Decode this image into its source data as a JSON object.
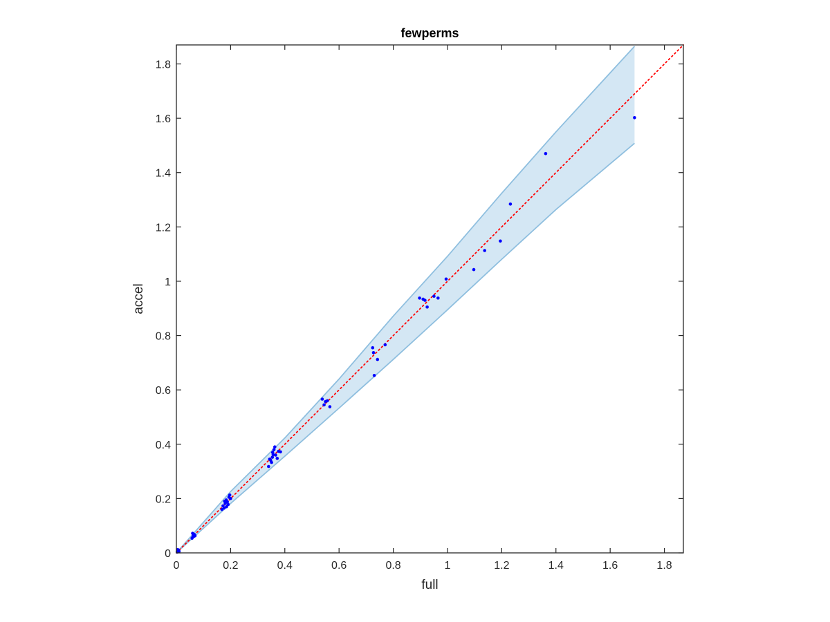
{
  "chart_data": {
    "type": "scatter",
    "title": "fewperms",
    "xlabel": "full",
    "ylabel": "accel",
    "xlim": [
      0,
      1.87
    ],
    "ylim": [
      0,
      1.87
    ],
    "xticks": [
      "0",
      "0.2",
      "0.4",
      "0.6",
      "0.8",
      "1",
      "1.2",
      "1.4",
      "1.6",
      "1.8"
    ],
    "yticks": [
      "0",
      "0.2",
      "0.4",
      "0.6",
      "0.8",
      "1",
      "1.2",
      "1.4",
      "1.6",
      "1.8"
    ],
    "grid": false,
    "reference_line": {
      "style": "dotted",
      "color": "#ff0000",
      "from": [
        0,
        0
      ],
      "to": [
        1.87,
        1.87
      ]
    },
    "band": {
      "color": "#d4e7f4",
      "edge_color": "#8fbfdf",
      "upper": [
        [
          0,
          0
        ],
        [
          0.2,
          0.226
        ],
        [
          0.4,
          0.423
        ],
        [
          0.6,
          0.64
        ],
        [
          0.8,
          0.872
        ],
        [
          1.0,
          1.092
        ],
        [
          1.2,
          1.324
        ],
        [
          1.4,
          1.55
        ],
        [
          1.69,
          1.865
        ]
      ],
      "lower": [
        [
          0,
          0
        ],
        [
          0.2,
          0.182
        ],
        [
          0.4,
          0.356
        ],
        [
          0.6,
          0.533
        ],
        [
          0.8,
          0.712
        ],
        [
          1.0,
          0.895
        ],
        [
          1.2,
          1.081
        ],
        [
          1.4,
          1.264
        ],
        [
          1.69,
          1.508
        ]
      ]
    },
    "series": [
      {
        "color": "#0000ff",
        "points": [
          [
            0.003,
            0.003
          ],
          [
            0.006,
            0.006
          ],
          [
            0.008,
            0.01
          ],
          [
            0.01,
            0.006
          ],
          [
            0.005,
            0.012
          ],
          [
            0.058,
            0.054
          ],
          [
            0.061,
            0.059
          ],
          [
            0.063,
            0.066
          ],
          [
            0.066,
            0.068
          ],
          [
            0.06,
            0.072
          ],
          [
            0.065,
            0.061
          ],
          [
            0.069,
            0.063
          ],
          [
            0.168,
            0.16
          ],
          [
            0.172,
            0.173
          ],
          [
            0.176,
            0.165
          ],
          [
            0.18,
            0.182
          ],
          [
            0.184,
            0.195
          ],
          [
            0.188,
            0.188
          ],
          [
            0.191,
            0.178
          ],
          [
            0.194,
            0.205
          ],
          [
            0.197,
            0.213
          ],
          [
            0.2,
            0.2
          ],
          [
            0.178,
            0.19
          ],
          [
            0.185,
            0.17
          ],
          [
            0.34,
            0.318
          ],
          [
            0.344,
            0.345
          ],
          [
            0.348,
            0.341
          ],
          [
            0.351,
            0.333
          ],
          [
            0.354,
            0.352
          ],
          [
            0.357,
            0.362
          ],
          [
            0.36,
            0.38
          ],
          [
            0.363,
            0.39
          ],
          [
            0.366,
            0.36
          ],
          [
            0.372,
            0.348
          ],
          [
            0.377,
            0.374
          ],
          [
            0.384,
            0.372
          ],
          [
            0.355,
            0.37
          ],
          [
            0.538,
            0.566
          ],
          [
            0.545,
            0.545
          ],
          [
            0.55,
            0.557
          ],
          [
            0.557,
            0.56
          ],
          [
            0.566,
            0.538
          ],
          [
            0.724,
            0.755
          ],
          [
            0.727,
            0.737
          ],
          [
            0.73,
            0.653
          ],
          [
            0.742,
            0.712
          ],
          [
            0.77,
            0.766
          ],
          [
            0.897,
            0.938
          ],
          [
            0.91,
            0.934
          ],
          [
            0.917,
            0.93
          ],
          [
            0.925,
            0.905
          ],
          [
            0.95,
            0.945
          ],
          [
            0.965,
            0.938
          ],
          [
            0.995,
            1.008
          ],
          [
            1.097,
            1.043
          ],
          [
            1.137,
            1.113
          ],
          [
            1.195,
            1.148
          ],
          [
            1.232,
            1.284
          ],
          [
            1.362,
            1.47
          ],
          [
            1.69,
            1.602
          ]
        ]
      }
    ]
  }
}
